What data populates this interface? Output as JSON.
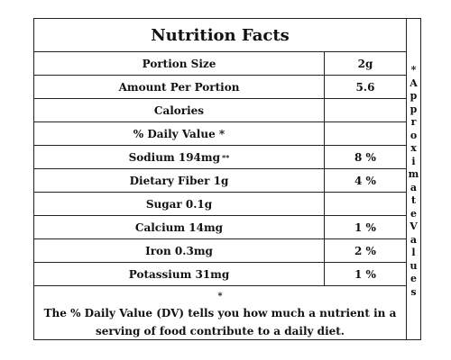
{
  "title": "Nutrition Facts",
  "rows": [
    {
      "name": "Portion Size",
      "value": "2g",
      "mark": ""
    },
    {
      "name": "Amount Per Portion",
      "value": "5.6",
      "mark": ""
    },
    {
      "name": "Calories",
      "value": "",
      "mark": ""
    },
    {
      "name": "% Daily Value *",
      "value": "",
      "mark": ""
    },
    {
      "name": "Sodium 194mg",
      "value": "8 %",
      "mark": "**"
    },
    {
      "name": "Dietary Fiber 1g",
      "value": "4 %",
      "mark": ""
    },
    {
      "name": "Sugar 0.1g",
      "value": "",
      "mark": ""
    },
    {
      "name": "Calcium 14mg",
      "value": "1 %",
      "mark": ""
    },
    {
      "name": "Iron 0.3mg",
      "value": "2 %",
      "mark": ""
    },
    {
      "name": "Potassium 31mg",
      "value": "1 %",
      "mark": ""
    }
  ],
  "footer": {
    "star": "*",
    "text": "The % Daily Value (DV) tells you how much a nutrient in a serving of food contribute to a daily diet."
  },
  "side_note": [
    "*",
    "A",
    "p",
    "p",
    "r",
    "o",
    "x",
    "i",
    "m",
    "a",
    "t",
    "e",
    "V",
    "a",
    "l",
    "u",
    "e",
    "s"
  ]
}
